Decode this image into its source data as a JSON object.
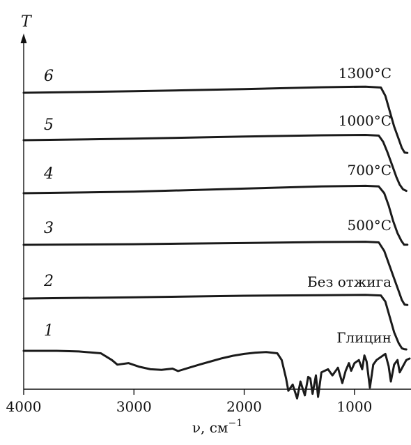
{
  "chart_data": {
    "type": "line",
    "title": "",
    "xlabel": "ν, см",
    "xlabel_superscript": "−1",
    "ylabel": "T",
    "xlim": [
      4000,
      500
    ],
    "x_reversed": true,
    "y_ticks_shown": false,
    "x_ticks": [
      4000,
      3000,
      2000,
      1000
    ],
    "x_tick_labels": [
      "4000",
      "3000",
      "2000",
      "1000"
    ],
    "grid": false,
    "series": [
      {
        "number": "1",
        "name": "Глицин",
        "points": [
          [
            4000,
            0.0
          ],
          [
            3700,
            0.0
          ],
          [
            3500,
            -0.02
          ],
          [
            3300,
            -0.08
          ],
          [
            3200,
            -0.3
          ],
          [
            3150,
            -0.45
          ],
          [
            3050,
            -0.4
          ],
          [
            2950,
            -0.52
          ],
          [
            2850,
            -0.6
          ],
          [
            2750,
            -0.62
          ],
          [
            2650,
            -0.58
          ],
          [
            2600,
            -0.66
          ],
          [
            2500,
            -0.55
          ],
          [
            2400,
            -0.44
          ],
          [
            2300,
            -0.34
          ],
          [
            2200,
            -0.24
          ],
          [
            2100,
            -0.16
          ],
          [
            2000,
            -0.1
          ],
          [
            1900,
            -0.06
          ],
          [
            1800,
            -0.04
          ],
          [
            1700,
            -0.08
          ],
          [
            1660,
            -0.3
          ],
          [
            1620,
            -0.9
          ],
          [
            1600,
            -1.3
          ],
          [
            1560,
            -1.1
          ],
          [
            1520,
            -1.55
          ],
          [
            1490,
            -1.0
          ],
          [
            1450,
            -1.45
          ],
          [
            1420,
            -0.85
          ],
          [
            1400,
            -0.9
          ],
          [
            1380,
            -1.4
          ],
          [
            1350,
            -0.8
          ],
          [
            1330,
            -1.5
          ],
          [
            1300,
            -0.7
          ],
          [
            1240,
            -0.6
          ],
          [
            1200,
            -0.8
          ],
          [
            1150,
            -0.55
          ],
          [
            1110,
            -1.05
          ],
          [
            1080,
            -0.65
          ],
          [
            1050,
            -0.4
          ],
          [
            1030,
            -0.65
          ],
          [
            1000,
            -0.4
          ],
          [
            960,
            -0.3
          ],
          [
            930,
            -0.6
          ],
          [
            910,
            -0.15
          ],
          [
            890,
            -0.35
          ],
          [
            860,
            -1.2
          ],
          [
            830,
            -0.45
          ],
          [
            800,
            -0.3
          ],
          [
            760,
            -0.2
          ],
          [
            720,
            -0.1
          ],
          [
            690,
            -0.5
          ],
          [
            670,
            -1.0
          ],
          [
            640,
            -0.45
          ],
          [
            610,
            -0.3
          ],
          [
            590,
            -0.7
          ],
          [
            560,
            -0.5
          ],
          [
            530,
            -0.3
          ],
          [
            500,
            -0.25
          ]
        ]
      },
      {
        "number": "2",
        "name": "Без отжига",
        "points": [
          [
            4000,
            0.0
          ],
          [
            3000,
            0.04
          ],
          [
            2000,
            0.09
          ],
          [
            1300,
            0.11
          ],
          [
            900,
            0.12
          ],
          [
            760,
            0.1
          ],
          [
            720,
            -0.1
          ],
          [
            680,
            -0.6
          ],
          [
            640,
            -1.1
          ],
          [
            600,
            -1.45
          ],
          [
            570,
            -1.62
          ],
          [
            550,
            -1.65
          ],
          [
            530,
            -1.66
          ]
        ]
      },
      {
        "number": "3",
        "name": "500°C",
        "points": [
          [
            4000,
            0.0
          ],
          [
            3000,
            0.02
          ],
          [
            2000,
            0.06
          ],
          [
            1300,
            0.09
          ],
          [
            900,
            0.1
          ],
          [
            780,
            0.08
          ],
          [
            730,
            -0.2
          ],
          [
            680,
            -0.7
          ],
          [
            640,
            -1.1
          ],
          [
            600,
            -1.5
          ],
          [
            570,
            -1.8
          ],
          [
            545,
            -1.95
          ],
          [
            520,
            -1.96
          ]
        ]
      },
      {
        "number": "4",
        "name": "700°C",
        "points": [
          [
            4000,
            0.0
          ],
          [
            3000,
            0.05
          ],
          [
            2000,
            0.15
          ],
          [
            1300,
            0.22
          ],
          [
            900,
            0.24
          ],
          [
            780,
            0.22
          ],
          [
            730,
            0.0
          ],
          [
            690,
            -0.4
          ],
          [
            650,
            -0.9
          ],
          [
            610,
            -1.3
          ],
          [
            575,
            -1.55
          ],
          [
            550,
            -1.68
          ],
          [
            520,
            -1.68
          ]
        ]
      },
      {
        "number": "5",
        "name": "1000°C",
        "points": [
          [
            4000,
            0.0
          ],
          [
            3000,
            0.05
          ],
          [
            2000,
            0.12
          ],
          [
            1300,
            0.16
          ],
          [
            900,
            0.17
          ],
          [
            780,
            0.15
          ],
          [
            740,
            -0.05
          ],
          [
            700,
            -0.4
          ],
          [
            660,
            -0.8
          ],
          [
            620,
            -1.2
          ],
          [
            590,
            -1.45
          ],
          [
            560,
            -1.6
          ],
          [
            530,
            -1.65
          ]
        ]
      },
      {
        "number": "6",
        "name": "1300°C",
        "points": [
          [
            4000,
            0.0
          ],
          [
            3000,
            0.05
          ],
          [
            2000,
            0.12
          ],
          [
            1300,
            0.18
          ],
          [
            900,
            0.2
          ],
          [
            760,
            0.17
          ],
          [
            720,
            -0.1
          ],
          [
            680,
            -0.6
          ],
          [
            640,
            -1.1
          ],
          [
            600,
            -1.5
          ],
          [
            570,
            -1.8
          ],
          [
            545,
            -1.95
          ],
          [
            520,
            -1.96
          ]
        ]
      }
    ]
  }
}
